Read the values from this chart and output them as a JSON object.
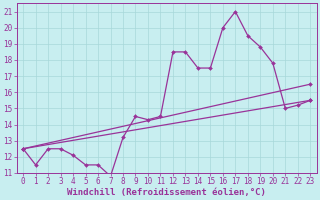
{
  "xlabel": "Windchill (Refroidissement éolien,°C)",
  "bg_color": "#c8eef0",
  "grid_color": "#a8d8da",
  "line_color": "#993399",
  "xlim": [
    -0.5,
    23.5
  ],
  "ylim": [
    11,
    21.5
  ],
  "xticks": [
    0,
    1,
    2,
    3,
    4,
    5,
    6,
    7,
    8,
    9,
    10,
    11,
    12,
    13,
    14,
    15,
    16,
    17,
    18,
    19,
    20,
    21,
    22,
    23
  ],
  "yticks": [
    11,
    12,
    13,
    14,
    15,
    16,
    17,
    18,
    19,
    20,
    21
  ],
  "line1_x": [
    0,
    1,
    2,
    3,
    4,
    5,
    6,
    7,
    8,
    9,
    10,
    11,
    12,
    13,
    14,
    15,
    16,
    17,
    18,
    19,
    20,
    21,
    22,
    23
  ],
  "line1_y": [
    12.5,
    11.5,
    12.5,
    12.5,
    12.1,
    11.5,
    11.5,
    10.8,
    13.2,
    14.5,
    14.3,
    14.5,
    18.5,
    18.5,
    17.5,
    17.5,
    20.0,
    21.0,
    19.5,
    18.8,
    17.8,
    15.0,
    15.2,
    15.5
  ],
  "line2_x": [
    0,
    23
  ],
  "line2_y": [
    12.5,
    15.5
  ],
  "line3_x": [
    0,
    23
  ],
  "line3_y": [
    12.5,
    16.5
  ],
  "markersize": 2.0,
  "linewidth": 0.9,
  "xlabel_fontsize": 6.5,
  "tick_fontsize": 5.5,
  "font_family": "monospace"
}
